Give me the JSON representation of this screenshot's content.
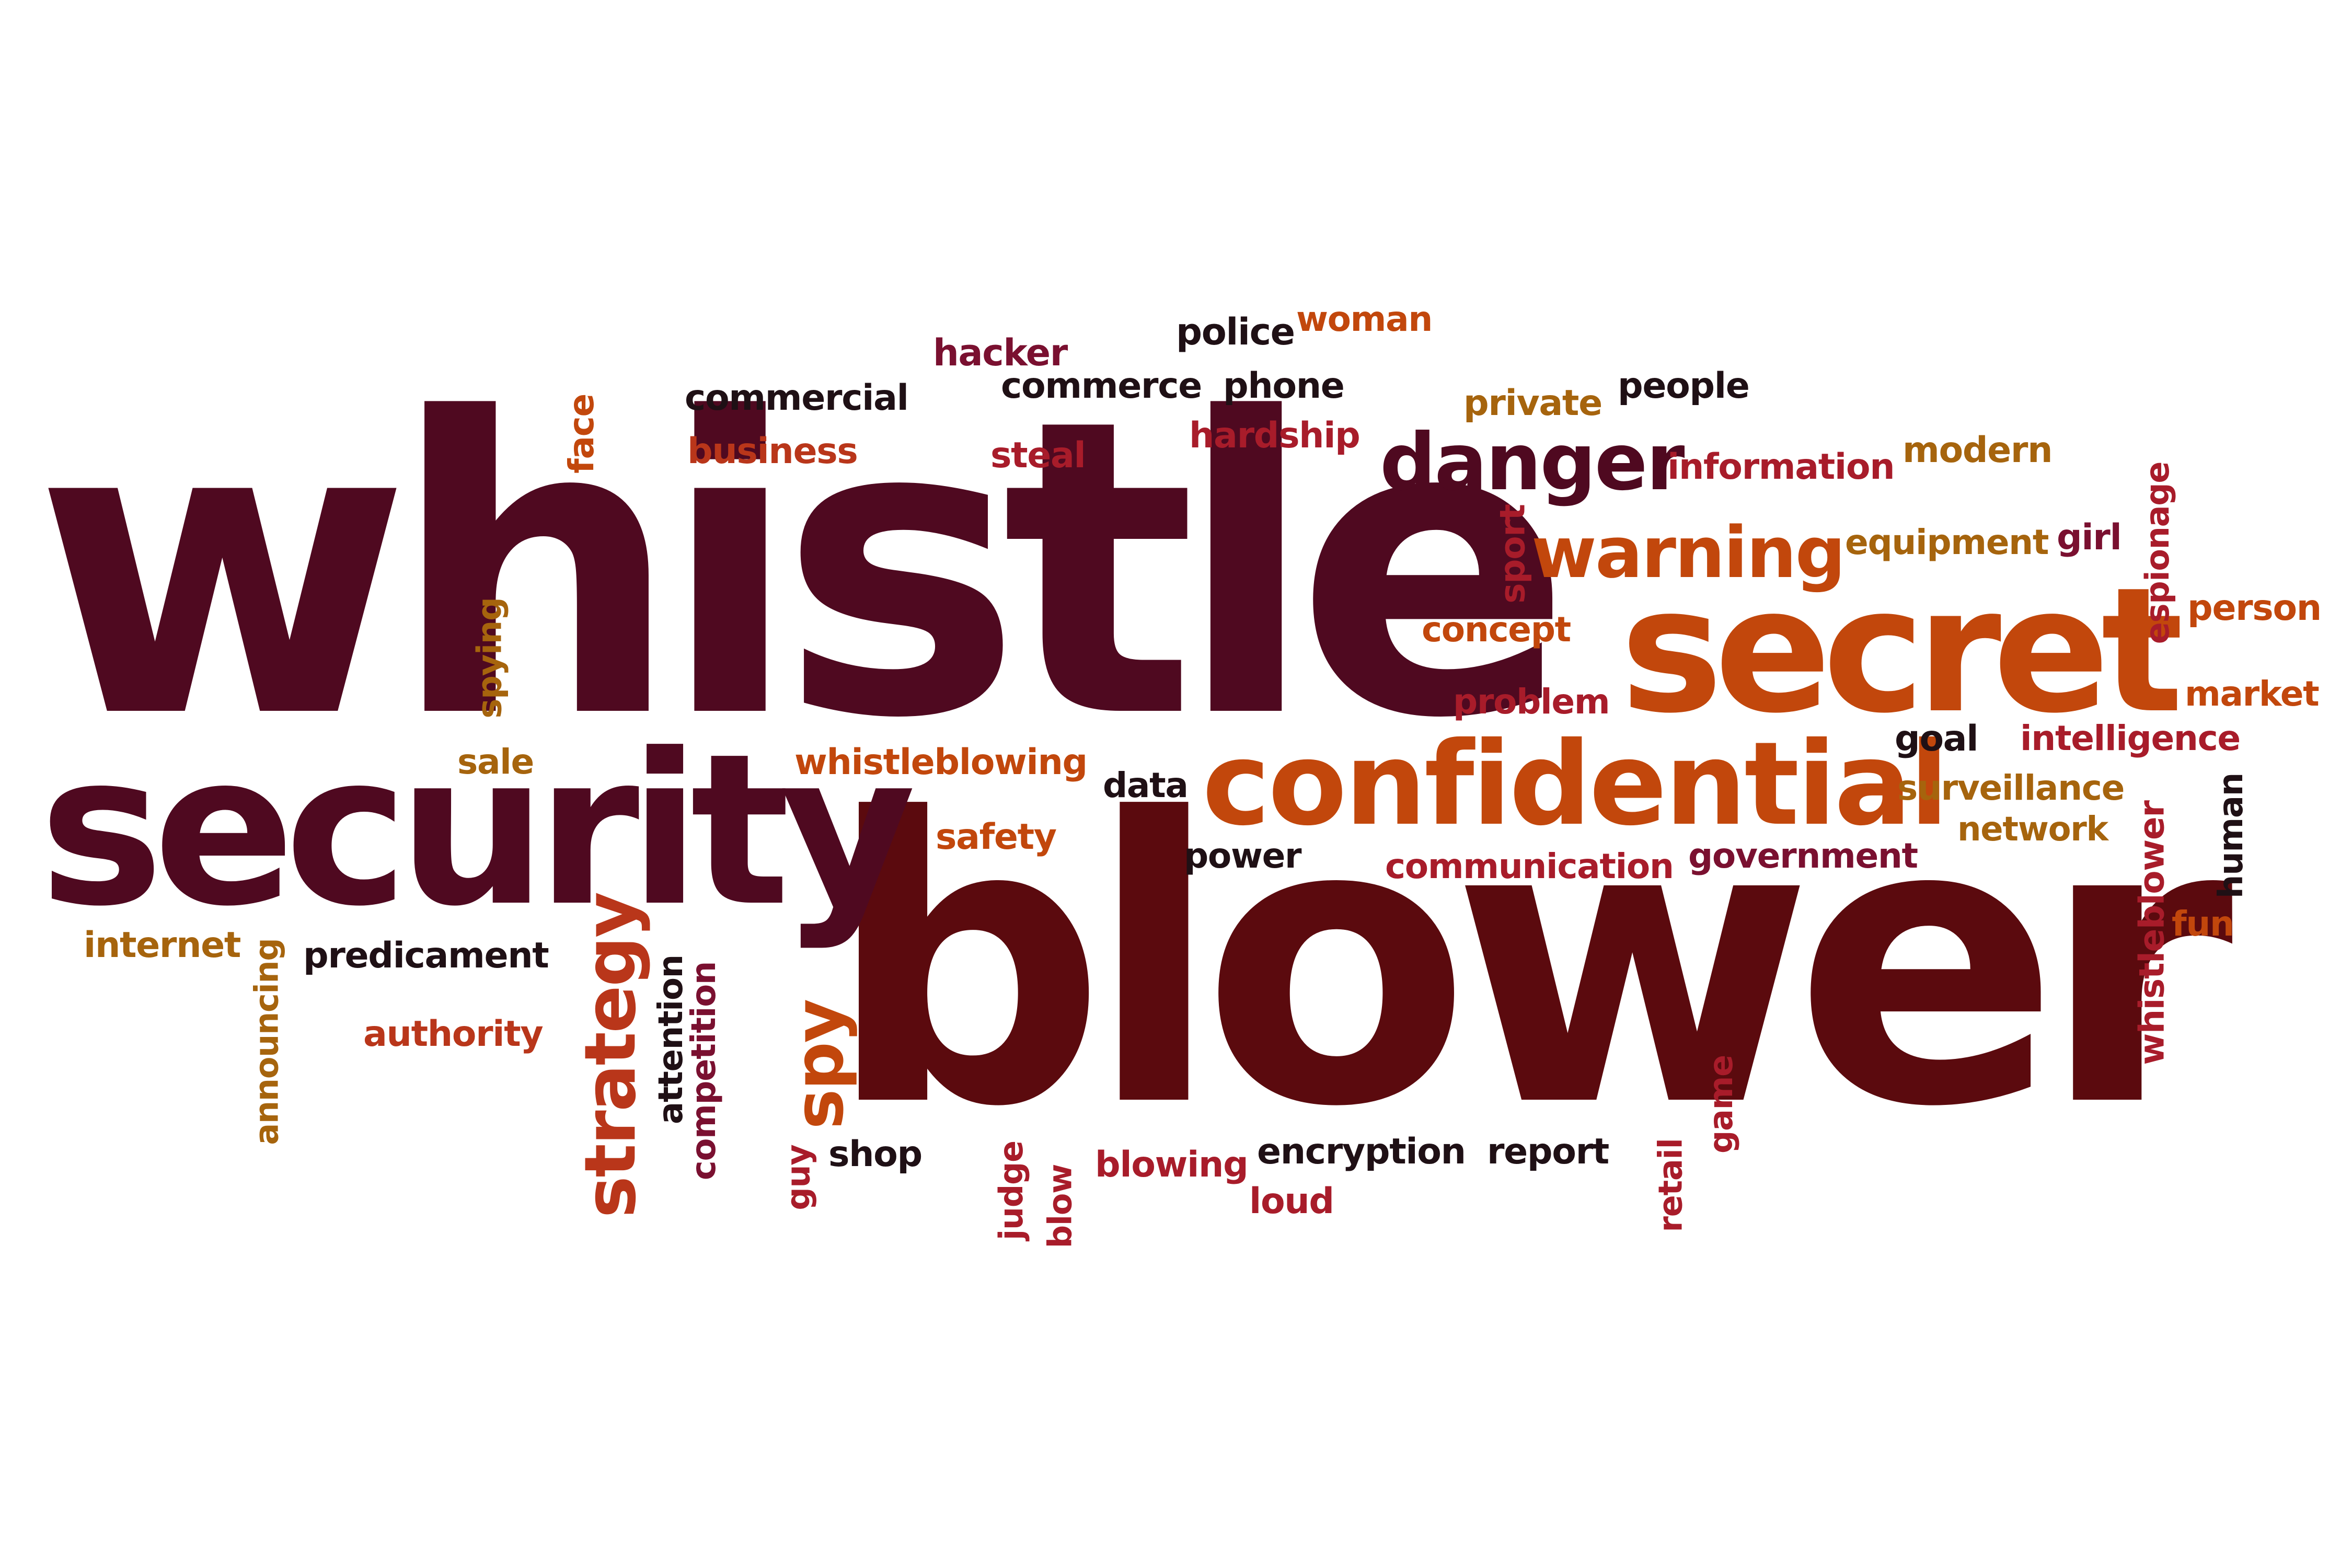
{
  "words": {
    "whistle": "whistle",
    "blower": "blower",
    "security": "security",
    "secret": "secret",
    "confidential": "confidential",
    "danger": "danger",
    "warning": "warning",
    "strategy": "strategy",
    "spy": "spy",
    "police": "police",
    "woman": "woman",
    "hacker": "hacker",
    "commercial": "commercial",
    "commerce": "commerce",
    "phone": "phone",
    "people": "people",
    "private": "private",
    "face": "face",
    "business": "business",
    "steal": "steal",
    "hardship": "hardship",
    "information": "information",
    "modern": "modern",
    "sport": "sport",
    "equipment": "equipment",
    "girl": "girl",
    "espionage": "espionage",
    "spying": "spying",
    "concept": "concept",
    "person": "person",
    "problem": "problem",
    "market": "market",
    "sale": "sale",
    "whistleblowing": "whistleblowing",
    "data": "data",
    "goal": "goal",
    "intelligence": "intelligence",
    "surveillance": "surveillance",
    "safety": "safety",
    "network": "network",
    "power": "power",
    "communication": "communication",
    "government": "government",
    "whistleblower": "whistleblower",
    "human": "human",
    "internet": "internet",
    "predicament": "predicament",
    "announcing": "announcing",
    "fun": "fun",
    "authority": "authority",
    "attention": "attention",
    "competition": "competition",
    "shop": "shop",
    "guy": "guy",
    "judge": "judge",
    "blow": "blow",
    "blowing": "blowing",
    "encryption": "encryption",
    "report": "report",
    "loud": "loud",
    "retail": "retail",
    "game": "game"
  },
  "palette": {
    "maroon": "#4f0920",
    "dark_red": "#5b0a0e",
    "orange": "#c2470c",
    "crimson": "#a81c2a",
    "mustard": "#a6640d",
    "near_black": "#1f1015",
    "rust": "#b9361a",
    "wine": "#7a1030"
  }
}
